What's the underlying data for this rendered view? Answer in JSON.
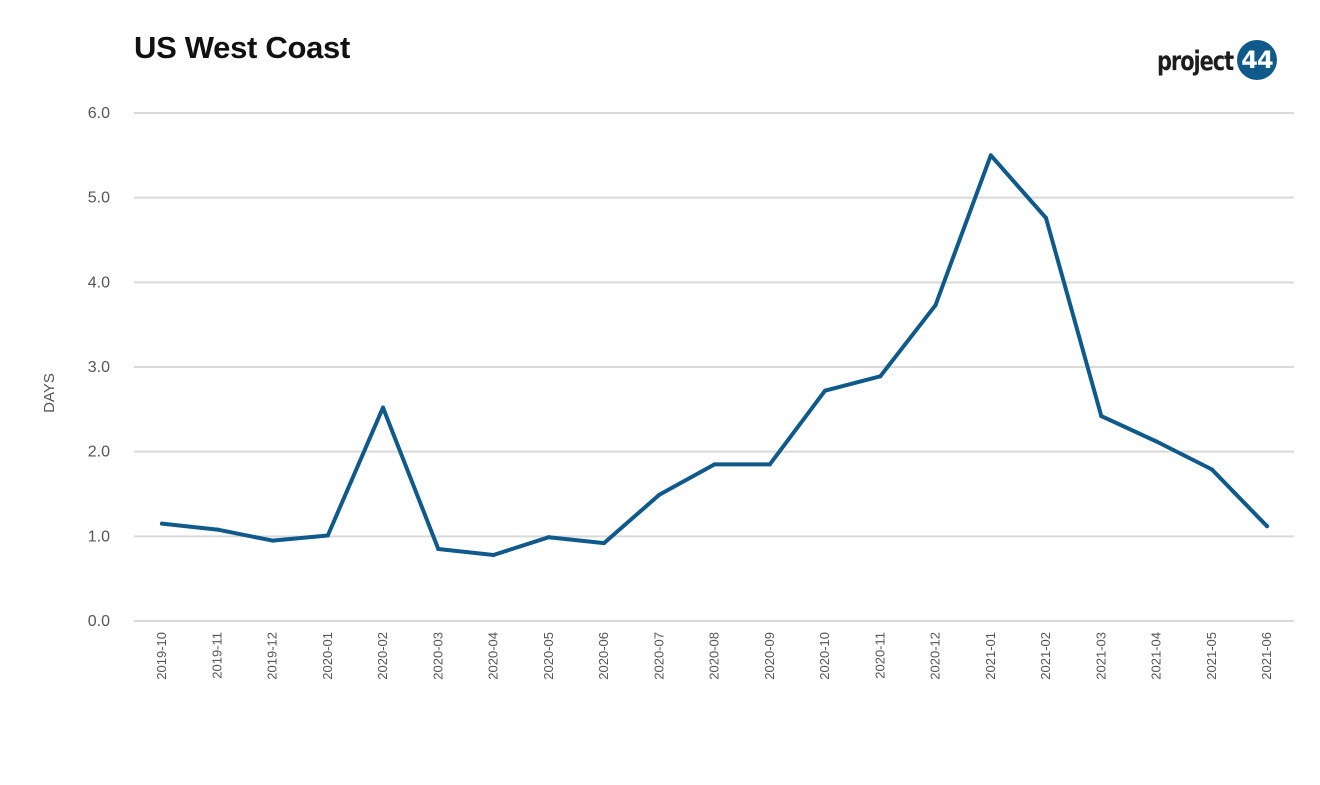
{
  "header": {
    "title": "US West Coast",
    "logo": {
      "text": "project",
      "badge": "44"
    }
  },
  "colors": {
    "line": "#0f5a8a",
    "grid": "#d9d9d9",
    "axis_text": "#555555"
  },
  "chart_data": {
    "type": "line",
    "title": "US West Coast",
    "xlabel": "",
    "ylabel": "DAYS",
    "ylim": [
      0,
      6
    ],
    "yticks": [
      "0.0",
      "1.0",
      "2.0",
      "3.0",
      "4.0",
      "5.0",
      "6.0"
    ],
    "grid": true,
    "categories": [
      "2019-10",
      "2019-11",
      "2019-12",
      "2020-01",
      "2020-02",
      "2020-03",
      "2020-04",
      "2020-05",
      "2020-06",
      "2020-07",
      "2020-08",
      "2020-09",
      "2020-10",
      "2020-11",
      "2020-12",
      "2021-01",
      "2021-02",
      "2021-03",
      "2021-04",
      "2021-05",
      "2021-06"
    ],
    "series": [
      {
        "values": [
          1.15,
          1.08,
          0.95,
          1.01,
          2.52,
          0.85,
          0.78,
          0.99,
          0.92,
          1.49,
          1.85,
          1.85,
          2.72,
          2.89,
          3.73,
          5.5,
          4.76,
          2.42,
          2.12,
          1.79,
          1.12
        ]
      }
    ]
  }
}
